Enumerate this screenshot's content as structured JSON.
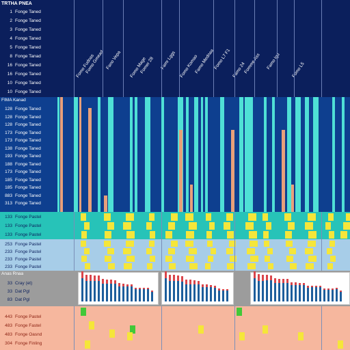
{
  "colors": {
    "header_bg": "#0b1f5c",
    "blue_block_bg": "#0e3f8f",
    "cyan": "#4fe0d6",
    "salmon": "#e8a07a",
    "teal_row": "#27c3b8",
    "yellow": "#f5e63a",
    "lightblue_row": "#a7cde8",
    "gray_row": "#9c9c9c",
    "peach_row": "#f6b79e",
    "green": "#42c838",
    "red_bar": "#d9454b",
    "blue_bar": "#1c5d9b"
  },
  "header": {
    "title": "TRTHA PNEA",
    "rows": [
      {
        "num": "1",
        "label": "Fonge Taned"
      },
      {
        "num": "2",
        "label": "Fonge Taned"
      },
      {
        "num": "3",
        "label": "Fonge Taned"
      },
      {
        "num": "4",
        "label": "Fonge Taned"
      },
      {
        "num": "5",
        "label": "Fonge Taned"
      },
      {
        "num": "8",
        "label": "Fonge Tanad"
      },
      {
        "num": "16",
        "label": "Fonge Taned"
      },
      {
        "num": "16",
        "label": "Fonge Taned"
      },
      {
        "num": "10",
        "label": "Fonge Taned"
      },
      {
        "num": "10",
        "label": "Fonge Taned"
      }
    ],
    "column_labels": [
      "Fomo Fudnas",
      "Fomo Gmead",
      "Fano Vepa",
      "Fomo Mage",
      "Fomer 28",
      "Famr Lggs",
      "Fomo Komao",
      "Famo Mednaa",
      "Fomo L7 F1",
      "Famo 24",
      "Fomme Ass",
      "Famo Igd",
      "Fomo L5"
    ]
  },
  "blue_block": {
    "title": "FIMA Kanad",
    "rows": [
      {
        "num": "128",
        "label": "Fonge Taned"
      },
      {
        "num": "128",
        "label": "Fonge Taned"
      },
      {
        "num": "128",
        "label": "Fonge Taned"
      },
      {
        "num": "173",
        "label": "Fonge Taned"
      },
      {
        "num": "173",
        "label": "Fonge Taned"
      },
      {
        "num": "138",
        "label": "Fonge Taned"
      },
      {
        "num": "193",
        "label": "Fonge Taned"
      },
      {
        "num": "188",
        "label": "Fonge Taned"
      },
      {
        "num": "173",
        "label": "Fonge Taned"
      },
      {
        "num": "185",
        "label": "Fonge Taned"
      },
      {
        "num": "185",
        "label": "Fonge Taned"
      },
      {
        "num": "883",
        "label": "Fonge Taned"
      },
      {
        "num": "313",
        "label": "Fonge Taned"
      }
    ]
  },
  "teal_block": {
    "rows": [
      {
        "num": "133",
        "label": "Fonge Pastel"
      },
      {
        "num": "133",
        "label": "Fonge Pastel"
      },
      {
        "num": "133",
        "label": "Fonge Pastel"
      }
    ]
  },
  "lightblue_block": {
    "rows": [
      {
        "num": "253",
        "label": "Fonge Pastel"
      },
      {
        "num": "233",
        "label": "Fonge Pastel"
      },
      {
        "num": "233",
        "label": "Fonge Pastel"
      },
      {
        "num": "233",
        "label": "Fonge Pastel"
      }
    ]
  },
  "gray_block": {
    "title": "Anas Rnaa",
    "rows": [
      {
        "num": "33",
        "label": "Cray (et)"
      },
      {
        "num": "33",
        "label": "Dat Pgl"
      },
      {
        "num": "83",
        "label": "Dat Pgl"
      }
    ]
  },
  "peach_block": {
    "rows": [
      {
        "num": "443",
        "label": "Fonge Pastel"
      },
      {
        "num": "483",
        "label": "Fonge Fastel"
      },
      {
        "num": "483",
        "label": "Fonge Oasnd"
      },
      {
        "num": "304",
        "label": "Fonge Finling"
      }
    ]
  }
}
